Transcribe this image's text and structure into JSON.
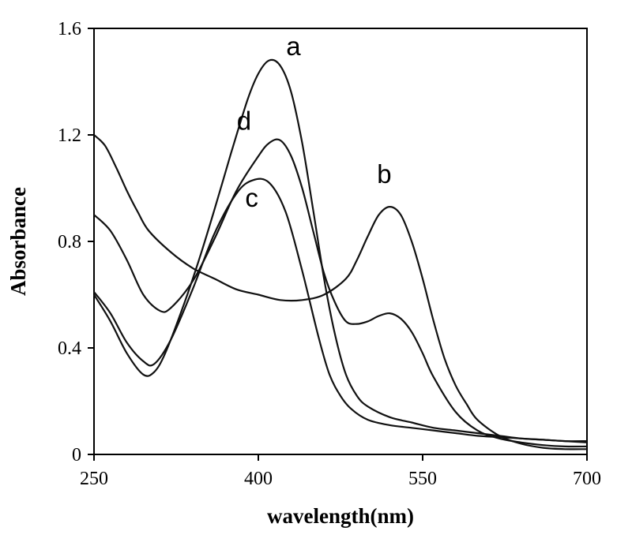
{
  "chart_data": {
    "type": "line",
    "title": "",
    "xlabel": "wavelength(nm)",
    "ylabel": "Absorbance",
    "xlim": [
      250,
      700
    ],
    "ylim": [
      0,
      1.6
    ],
    "x_ticks": [
      250,
      400,
      550,
      700
    ],
    "y_ticks": [
      0,
      0.4,
      0.8,
      1.2,
      1.6
    ],
    "x_tick_labels": [
      "250",
      "400",
      "550",
      "700"
    ],
    "y_tick_labels": [
      "0",
      "0.4",
      "0.8",
      "1.2",
      "1.6"
    ],
    "grid": false,
    "legend": "none",
    "series": [
      {
        "label": "a",
        "label_at": [
          432,
          1.5
        ],
        "x": [
          250,
          265,
          280,
          295,
          305,
          315,
          330,
          345,
          360,
          375,
          390,
          400,
          410,
          420,
          430,
          440,
          450,
          460,
          470,
          480,
          490,
          500,
          520,
          540,
          560,
          580,
          600,
          620,
          640,
          660,
          680,
          700
        ],
        "y": [
          0.6,
          0.5,
          0.38,
          0.3,
          0.31,
          0.38,
          0.54,
          0.72,
          0.92,
          1.13,
          1.33,
          1.43,
          1.48,
          1.46,
          1.36,
          1.17,
          0.92,
          0.66,
          0.45,
          0.3,
          0.22,
          0.18,
          0.14,
          0.12,
          0.1,
          0.09,
          0.08,
          0.07,
          0.06,
          0.055,
          0.05,
          0.05
        ]
      },
      {
        "label": "b",
        "label_at": [
          515,
          1.02
        ],
        "x": [
          250,
          260,
          270,
          280,
          290,
          300,
          320,
          340,
          360,
          380,
          400,
          420,
          440,
          460,
          480,
          490,
          500,
          510,
          520,
          530,
          540,
          550,
          560,
          570,
          580,
          590,
          600,
          620,
          640,
          660,
          680,
          700
        ],
        "y": [
          1.2,
          1.16,
          1.08,
          0.99,
          0.91,
          0.84,
          0.76,
          0.7,
          0.66,
          0.62,
          0.6,
          0.58,
          0.58,
          0.6,
          0.66,
          0.73,
          0.82,
          0.9,
          0.93,
          0.9,
          0.8,
          0.66,
          0.5,
          0.36,
          0.26,
          0.19,
          0.13,
          0.07,
          0.04,
          0.025,
          0.02,
          0.02
        ]
      },
      {
        "label": "c",
        "label_at": [
          394,
          0.93
        ],
        "x": [
          250,
          265,
          280,
          295,
          305,
          320,
          340,
          360,
          380,
          395,
          410,
          425,
          440,
          455,
          465,
          475,
          485,
          500,
          520,
          540,
          560,
          580,
          600,
          620,
          640,
          660,
          680,
          700
        ],
        "y": [
          0.61,
          0.53,
          0.42,
          0.35,
          0.34,
          0.43,
          0.62,
          0.83,
          0.98,
          1.03,
          1.02,
          0.91,
          0.69,
          0.44,
          0.3,
          0.22,
          0.17,
          0.13,
          0.11,
          0.1,
          0.09,
          0.08,
          0.07,
          0.065,
          0.06,
          0.055,
          0.05,
          0.045
        ]
      },
      {
        "label": "d",
        "label_at": [
          387,
          1.22
        ],
        "x": [
          250,
          265,
          280,
          295,
          310,
          320,
          340,
          360,
          380,
          400,
          410,
          420,
          430,
          440,
          450,
          460,
          470,
          480,
          490,
          500,
          510,
          520,
          530,
          540,
          550,
          560,
          580,
          600,
          620,
          640,
          660,
          680,
          700
        ],
        "y": [
          0.9,
          0.84,
          0.73,
          0.6,
          0.54,
          0.55,
          0.65,
          0.81,
          0.99,
          1.12,
          1.17,
          1.18,
          1.12,
          1.0,
          0.84,
          0.68,
          0.57,
          0.5,
          0.49,
          0.5,
          0.52,
          0.53,
          0.51,
          0.46,
          0.38,
          0.29,
          0.16,
          0.09,
          0.06,
          0.045,
          0.035,
          0.03,
          0.03
        ]
      }
    ]
  }
}
